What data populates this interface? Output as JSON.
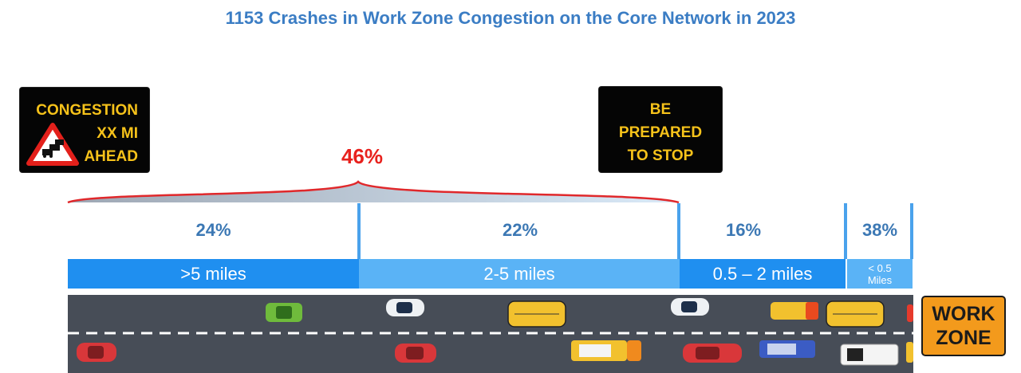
{
  "title": "1153 Crashes in Work Zone Congestion on the Core Network in 2023",
  "signs": {
    "congestion": [
      "CONGESTION",
      "XX MI",
      "AHEAD"
    ],
    "prepare": [
      "BE",
      "PREPARED",
      "TO STOP"
    ],
    "work_zone": [
      "WORK",
      "ZONE"
    ]
  },
  "colors": {
    "title": "#3b7dc4",
    "highlight": "#e8211d",
    "segment_text": "#3c78b4",
    "band_dark": "#1f8ff0",
    "band_light": "#5ab3f6",
    "road": "#474d57",
    "sign_text": "#f6c21a",
    "work_zone_sign": "#f39a1c"
  },
  "chart_data": {
    "type": "bar",
    "title": "1153 Crashes in Work Zone Congestion on the Core Network in 2023",
    "categories": [
      ">5 miles",
      "2-5 miles",
      "0.5 – 2 miles",
      "< 0.5 Miles"
    ],
    "values": [
      24,
      22,
      16,
      38
    ],
    "value_labels": [
      "24%",
      "22%",
      "16%",
      "38%"
    ],
    "unit": "%",
    "group_annotation": {
      "label": "46%",
      "value": 46,
      "spans": [
        ">5 miles",
        "2-5 miles"
      ]
    },
    "xlabel": "",
    "ylabel": "",
    "grid": false,
    "legend": "none"
  }
}
